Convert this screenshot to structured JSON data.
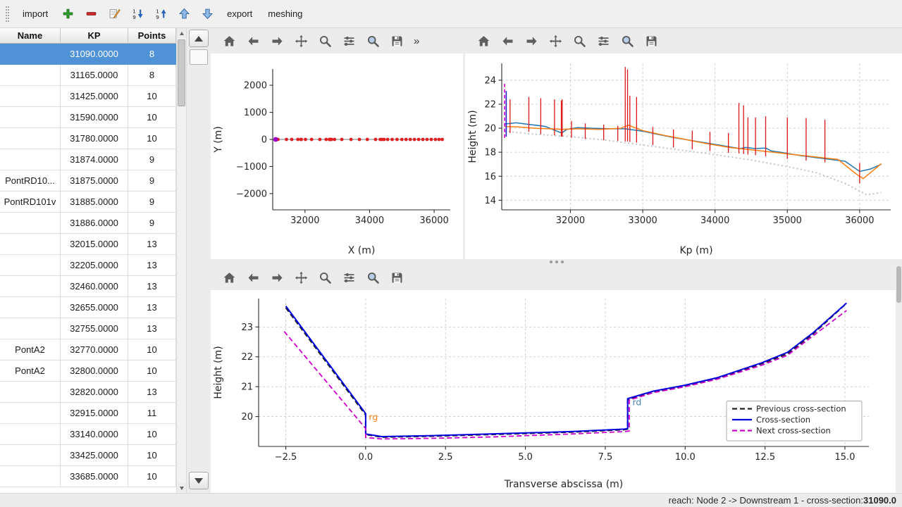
{
  "menubar": {
    "import_label": "import",
    "export_label": "export",
    "meshing_label": "meshing",
    "icon_buttons": [
      "add",
      "remove",
      "edit",
      "sort-descending",
      "sort-ascending",
      "move-up",
      "move-down"
    ]
  },
  "mpl_toolbar": {
    "buttons": [
      "home",
      "back",
      "forward",
      "pan",
      "zoom",
      "subplots",
      "customize",
      "save"
    ],
    "overflow_label": "»"
  },
  "table": {
    "columns": [
      "Name",
      "KP",
      "Points"
    ],
    "selected_index": 0,
    "rows": [
      {
        "name": "",
        "kp": "31090.0000",
        "points": "8"
      },
      {
        "name": "",
        "kp": "31165.0000",
        "points": "8"
      },
      {
        "name": "",
        "kp": "31425.0000",
        "points": "10"
      },
      {
        "name": "",
        "kp": "31590.0000",
        "points": "10"
      },
      {
        "name": "",
        "kp": "31780.0000",
        "points": "10"
      },
      {
        "name": "",
        "kp": "31874.0000",
        "points": "9"
      },
      {
        "name": "PontRD10...",
        "kp": "31875.0000",
        "points": "9"
      },
      {
        "name": "PontRD101v",
        "kp": "31885.0000",
        "points": "9"
      },
      {
        "name": "",
        "kp": "31886.0000",
        "points": "9"
      },
      {
        "name": "",
        "kp": "32015.0000",
        "points": "13"
      },
      {
        "name": "",
        "kp": "32205.0000",
        "points": "13"
      },
      {
        "name": "",
        "kp": "32460.0000",
        "points": "13"
      },
      {
        "name": "",
        "kp": "32655.0000",
        "points": "13"
      },
      {
        "name": "",
        "kp": "32755.0000",
        "points": "13"
      },
      {
        "name": "PontA2",
        "kp": "32770.0000",
        "points": "10"
      },
      {
        "name": "PontA2",
        "kp": "32800.0000",
        "points": "10"
      },
      {
        "name": "",
        "kp": "32820.0000",
        "points": "13"
      },
      {
        "name": "",
        "kp": "32915.0000",
        "points": "11"
      },
      {
        "name": "",
        "kp": "33140.0000",
        "points": "10"
      },
      {
        "name": "",
        "kp": "33425.0000",
        "points": "10"
      },
      {
        "name": "",
        "kp": "33685.0000",
        "points": "10"
      }
    ]
  },
  "statusbar": {
    "prefix": "reach: Node 2 -> Downstream 1 - cross-section: ",
    "value": "31090.0"
  },
  "chart_data": [
    {
      "id": "plan-view",
      "type": "line",
      "xlabel": "X (m)",
      "ylabel": "Y (m)",
      "xlim": [
        31000,
        36500
      ],
      "ylim": [
        -2600,
        2600
      ],
      "xticks": [
        32000,
        34000,
        36000
      ],
      "xtick_labels": [
        "32000",
        "34000",
        "36000"
      ],
      "yticks": [
        -2000,
        -1000,
        0,
        1000,
        2000
      ],
      "ytick_labels": [
        "−2000",
        "−1000",
        "0",
        "1000",
        "2000"
      ],
      "grid": false,
      "series": [
        {
          "name": "river-axis",
          "color": "#777777",
          "width": 1,
          "x": [
            31090,
            36250
          ],
          "y": [
            0,
            0
          ]
        },
        {
          "name": "cross-section-markers",
          "color": "#e02020",
          "width": 0,
          "marker": 2.4,
          "yconst": 0,
          "x": [
            31090,
            31165,
            31425,
            31590,
            31780,
            31875,
            31886,
            32015,
            32205,
            32460,
            32655,
            32755,
            32770,
            32800,
            32820,
            32915,
            33140,
            33425,
            33685,
            33930,
            34185,
            34330,
            34390,
            34450,
            34560,
            34700,
            34850,
            35000,
            35130,
            35260,
            35390,
            35520,
            35650,
            35780,
            35910,
            36040,
            36150,
            36250
          ]
        },
        {
          "name": "selected-cross-section-marker",
          "color": "#9a00c8",
          "width": 0,
          "marker": 3.4,
          "x": [
            31090
          ],
          "y": [
            0
          ]
        }
      ]
    },
    {
      "id": "longitudinal-profile",
      "type": "line",
      "xlabel": "Kp (m)",
      "ylabel": "Height (m)",
      "xlim": [
        31050,
        36430
      ],
      "ylim": [
        13.2,
        25.4
      ],
      "xticks": [
        32000,
        33000,
        34000,
        35000,
        36000
      ],
      "xtick_labels": [
        "32000",
        "33000",
        "34000",
        "35000",
        "36000"
      ],
      "yticks": [
        14,
        16,
        18,
        20,
        22,
        24
      ],
      "ytick_labels": [
        "14",
        "16",
        "18",
        "20",
        "22",
        "24"
      ],
      "grid": true,
      "series": [
        {
          "name": "bottom-profile",
          "color": "#c4c4c4",
          "dash": "2,3.5",
          "width": 2,
          "x": [
            31090,
            31500,
            32000,
            32500,
            33000,
            33500,
            34000,
            34500,
            35000,
            35400,
            35800,
            36100,
            36300
          ],
          "y": [
            19.75,
            19.5,
            19.3,
            19.0,
            18.6,
            18.2,
            17.8,
            17.35,
            16.8,
            16.3,
            15.4,
            14.45,
            14.65
          ]
        },
        {
          "name": "left-bank",
          "color": "#1f77b4",
          "width": 1.5,
          "x": [
            31090,
            31250,
            31450,
            31650,
            31880,
            31950,
            32100,
            32300,
            32550,
            32760,
            32820,
            33000,
            33200,
            33450,
            33700,
            33950,
            34200,
            34340,
            34420,
            34560,
            34700,
            34780,
            34900,
            35000,
            35200,
            35400,
            35600,
            35800,
            36000,
            36150,
            36300
          ],
          "y": [
            20.35,
            20.45,
            20.3,
            20.15,
            19.6,
            19.9,
            20.05,
            20.0,
            19.95,
            19.95,
            19.9,
            19.75,
            19.5,
            19.2,
            18.95,
            18.7,
            18.45,
            18.3,
            18.4,
            18.3,
            18.35,
            18.1,
            18.0,
            17.9,
            17.7,
            17.55,
            17.4,
            17.25,
            16.4,
            16.6,
            17.0
          ]
        },
        {
          "name": "right-bank",
          "color": "#ff7f0e",
          "width": 1.5,
          "x": [
            31090,
            31300,
            31500,
            31700,
            31900,
            32100,
            32400,
            32700,
            32800,
            33000,
            33300,
            33600,
            33900,
            34200,
            34500,
            34800,
            35100,
            35400,
            35700,
            35950,
            36050,
            36300
          ],
          "y": [
            20.15,
            20.1,
            20.0,
            19.95,
            19.9,
            19.95,
            19.9,
            20.0,
            20.25,
            19.8,
            19.4,
            19.05,
            18.7,
            18.4,
            18.2,
            18.0,
            17.8,
            17.6,
            17.4,
            16.2,
            15.8,
            17.05
          ]
        }
      ],
      "vlines": [
        {
          "x": 31090,
          "y0": 19.2,
          "y1": 23.7,
          "color": "#cc00cc",
          "dash": "5,3",
          "width": 1.6
        },
        {
          "x": 31112,
          "y0": 19.3,
          "y1": 23.1,
          "color": "#2222cc",
          "width": 1.6
        },
        {
          "x": 31165,
          "y0": 19.6,
          "y1": 22.4,
          "color": "#dd1515"
        },
        {
          "x": 31425,
          "y0": 19.7,
          "y1": 22.6,
          "color": "#dd1515"
        },
        {
          "x": 31590,
          "y0": 19.5,
          "y1": 22.5,
          "color": "#dd1515"
        },
        {
          "x": 31780,
          "y0": 19.4,
          "y1": 22.4,
          "color": "#dd1515"
        },
        {
          "x": 31874,
          "y0": 19.3,
          "y1": 22.3,
          "color": "#dd1515"
        },
        {
          "x": 31886,
          "y0": 19.3,
          "y1": 22.4,
          "color": "#dd1515"
        },
        {
          "x": 32015,
          "y0": 19.2,
          "y1": 20.6,
          "color": "#dd1515"
        },
        {
          "x": 32205,
          "y0": 19.1,
          "y1": 20.4,
          "color": "#dd1515"
        },
        {
          "x": 32460,
          "y0": 19.0,
          "y1": 20.3,
          "color": "#dd1515"
        },
        {
          "x": 32655,
          "y0": 18.95,
          "y1": 20.2,
          "color": "#dd1515"
        },
        {
          "x": 32758,
          "y0": 18.9,
          "y1": 25.1,
          "color": "#dd1515"
        },
        {
          "x": 32790,
          "y0": 18.9,
          "y1": 24.9,
          "color": "#dd1515"
        },
        {
          "x": 32822,
          "y0": 18.85,
          "y1": 22.7,
          "color": "#dd1515"
        },
        {
          "x": 32915,
          "y0": 18.8,
          "y1": 22.6,
          "color": "#dd1515"
        },
        {
          "x": 33140,
          "y0": 18.6,
          "y1": 20.1,
          "color": "#dd1515"
        },
        {
          "x": 33425,
          "y0": 18.4,
          "y1": 19.9,
          "color": "#dd1515"
        },
        {
          "x": 33685,
          "y0": 18.25,
          "y1": 19.8,
          "color": "#dd1515"
        },
        {
          "x": 33930,
          "y0": 18.1,
          "y1": 19.7,
          "color": "#dd1515"
        },
        {
          "x": 34185,
          "y0": 17.95,
          "y1": 19.6,
          "color": "#dd1515"
        },
        {
          "x": 34330,
          "y0": 17.9,
          "y1": 22.1,
          "color": "#dd1515"
        },
        {
          "x": 34395,
          "y0": 17.85,
          "y1": 21.9,
          "color": "#dd1515"
        },
        {
          "x": 34455,
          "y0": 17.8,
          "y1": 20.9,
          "color": "#dd1515"
        },
        {
          "x": 34560,
          "y0": 17.75,
          "y1": 20.9,
          "color": "#dd1515"
        },
        {
          "x": 34700,
          "y0": 17.65,
          "y1": 21.0,
          "color": "#dd1515"
        },
        {
          "x": 35000,
          "y0": 17.45,
          "y1": 20.9,
          "color": "#dd1515"
        },
        {
          "x": 35260,
          "y0": 17.3,
          "y1": 20.85,
          "color": "#dd1515"
        },
        {
          "x": 35520,
          "y0": 17.15,
          "y1": 20.7,
          "color": "#dd1515"
        },
        {
          "x": 36000,
          "y0": 15.4,
          "y1": 17.1,
          "color": "#dd1515"
        }
      ]
    },
    {
      "id": "cross-section",
      "type": "line",
      "xlabel": "Transverse abscissa (m)",
      "ylabel": "Height (m)",
      "xlim": [
        -3.35,
        15.75
      ],
      "ylim": [
        19.0,
        23.95
      ],
      "xticks": [
        -2.5,
        0.0,
        2.5,
        5.0,
        7.5,
        10.0,
        12.5,
        15.0
      ],
      "xtick_labels": [
        "−2.5",
        "0.0",
        "2.5",
        "5.0",
        "7.5",
        "10.0",
        "12.5",
        "15.0"
      ],
      "yticks": [
        20,
        21,
        22,
        23
      ],
      "ytick_labels": [
        "20",
        "21",
        "22",
        "23"
      ],
      "grid": true,
      "legend": true,
      "series": [
        {
          "name": "Previous cross-section",
          "legend": true,
          "color": "#222222",
          "dash": "7,4",
          "width": 2,
          "x": [
            -2.5,
            0.0,
            0.0,
            0.5,
            2.0,
            4.0,
            6.5,
            8.1,
            8.2,
            8.2,
            9.0,
            10.0,
            11.0,
            12.4,
            13.2,
            14.0,
            15.0
          ],
          "y": [
            23.64,
            20.05,
            19.4,
            19.31,
            19.34,
            19.4,
            19.48,
            19.56,
            19.58,
            20.57,
            20.82,
            21.02,
            21.27,
            21.77,
            22.1,
            22.76,
            23.74
          ]
        },
        {
          "name": "Cross-section",
          "legend": true,
          "color": "#0000e0",
          "width": 2,
          "x": [
            -2.5,
            0.0,
            0.0,
            0.5,
            2.0,
            4.0,
            6.5,
            8.1,
            8.2,
            8.2,
            9.0,
            10.0,
            11.0,
            12.4,
            13.2,
            14.0,
            15.05
          ],
          "y": [
            23.7,
            20.1,
            19.42,
            19.33,
            19.36,
            19.42,
            19.5,
            19.58,
            19.6,
            20.6,
            20.85,
            21.05,
            21.3,
            21.8,
            22.15,
            22.8,
            23.8
          ]
        },
        {
          "name": "Next cross-section",
          "legend": true,
          "color": "#cc00cc",
          "dash": "7,4",
          "width": 1.8,
          "x": [
            -2.55,
            0.0,
            0.0,
            0.5,
            2.0,
            4.0,
            6.5,
            8.15,
            8.25,
            8.25,
            9.0,
            10.0,
            11.0,
            12.4,
            13.2,
            14.0,
            15.05
          ],
          "y": [
            22.85,
            19.6,
            19.3,
            19.25,
            19.27,
            19.32,
            19.42,
            19.5,
            19.52,
            20.55,
            20.8,
            21.0,
            21.25,
            21.72,
            22.05,
            22.7,
            23.55
          ]
        }
      ],
      "annotations": [
        {
          "x": 0.1,
          "y": 19.88,
          "text": "rg",
          "color": "#ff7f0e"
        },
        {
          "x": 8.35,
          "y": 20.38,
          "text": "rd",
          "color": "#4682b4"
        }
      ]
    }
  ]
}
